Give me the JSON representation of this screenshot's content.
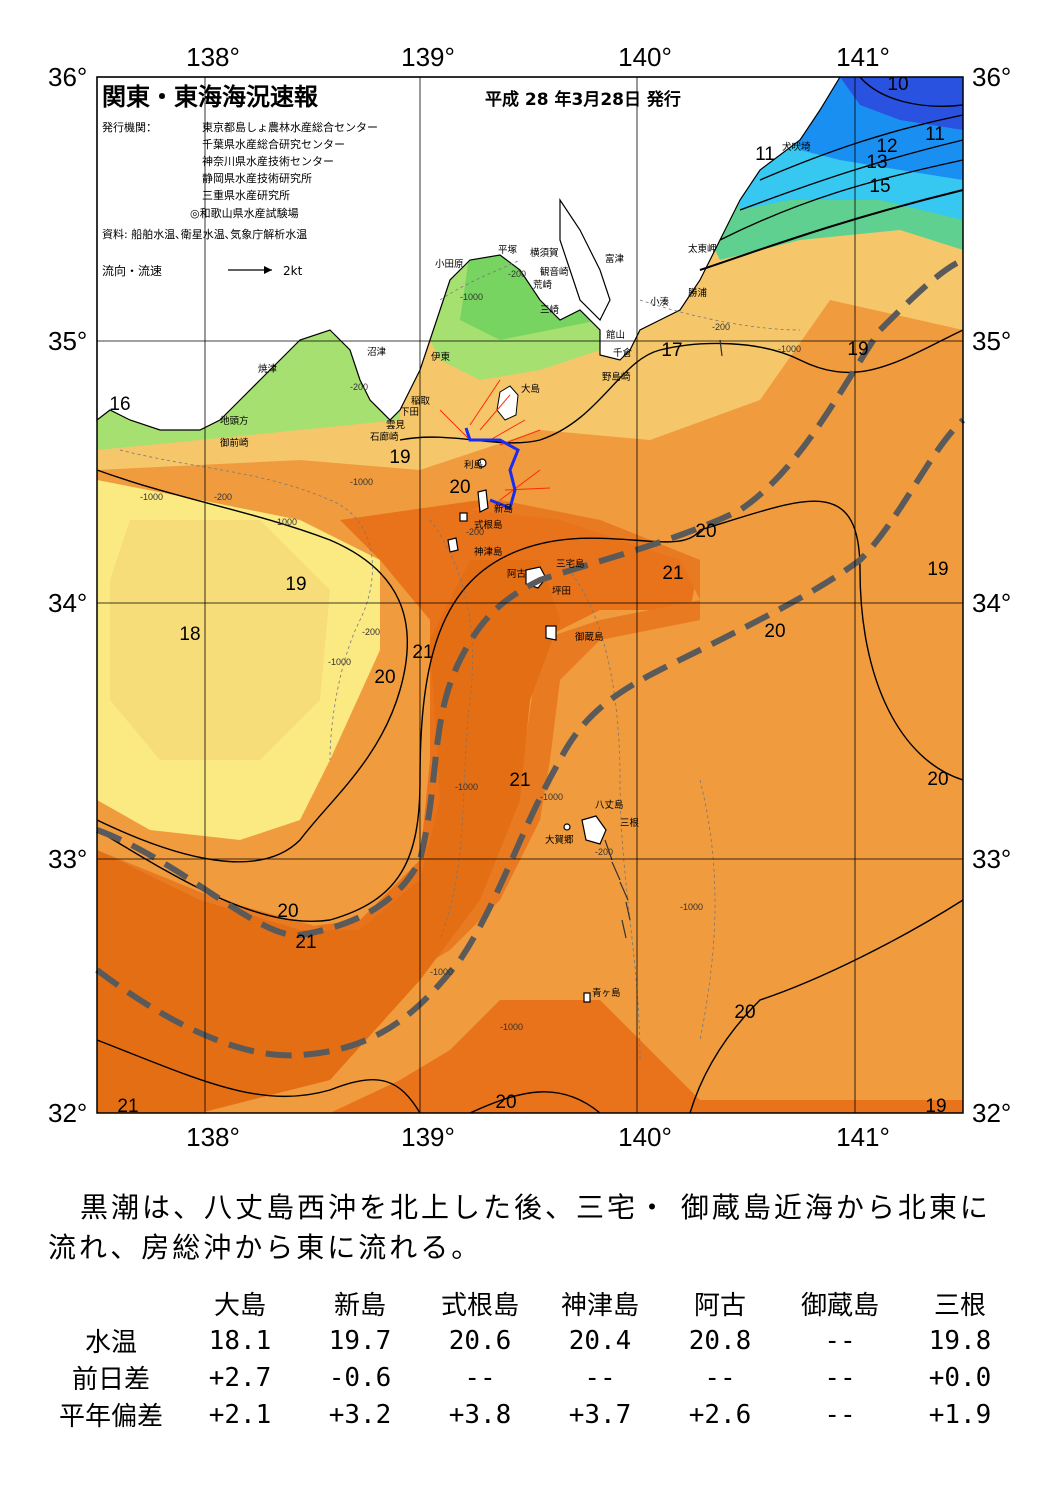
{
  "map": {
    "title": "関東・東海海況速報",
    "issue_date": "平成 28 年3月28日 発行",
    "publisher_label": "発行機関：",
    "publishers": [
      "東京都島しょ農林水産総合センター",
      "千葉県水産総合研究センター",
      "神奈川県水産技術センター",
      "静岡県水産技術研究所",
      "三重県水産研究所",
      "◎和歌山県水産試験場"
    ],
    "source": "資料: 船舶水温､衛星水温､気象庁解析水温",
    "legend_label": "流向・流速",
    "legend_value": "2kt",
    "lon_labels": [
      "138°",
      "139°",
      "140°",
      "141°"
    ],
    "lat_labels": [
      "36°",
      "35°",
      "34°",
      "33°",
      "32°"
    ],
    "isotherm_labels": [
      "10",
      "11",
      "11",
      "12",
      "13",
      "15",
      "16",
      "17",
      "18",
      "19",
      "19",
      "19",
      "19",
      "19",
      "20",
      "20",
      "20",
      "20",
      "20",
      "20",
      "20",
      "20",
      "21",
      "21",
      "21",
      "21",
      "21"
    ],
    "depth_labels": [
      "-200",
      "-1000",
      "-200",
      "-1000",
      "-200",
      "-1000",
      "-1000",
      "-200",
      "-200",
      "-1000",
      "-1000",
      "-1000",
      "-1000",
      "-1000",
      "-200",
      "-1000",
      "-1000",
      "-200"
    ],
    "place_names": [
      "犬吠埼",
      "太東岬",
      "勝浦",
      "小湊",
      "富津",
      "横須賀",
      "観音崎",
      "荒崎",
      "三崎",
      "館山",
      "千倉",
      "野島崎",
      "平塚",
      "小田原",
      "沼津",
      "伊東",
      "焼津",
      "稲取",
      "下田",
      "雲見",
      "石廊崎",
      "地頭方",
      "御前崎",
      "大島",
      "利島",
      "新島",
      "式根島",
      "神津島",
      "三宅島",
      "阿古",
      "坪田",
      "御蔵島",
      "八丈島",
      "三根",
      "大賀郷",
      "青ヶ島"
    ],
    "colors": {
      "kuroshio": "#5a5a5a",
      "current_vectors": "#ff2a0a",
      "ship_track": "#1a2cf0",
      "land": "#ffffff"
    }
  },
  "summary": "黒潮は、八丈島西沖を北上した後、三宅・ 御蔵島近海から北東に流れ、房総沖から東に流れる。",
  "table": {
    "columns": [
      "大島",
      "新島",
      "式根島",
      "神津島",
      "阿古",
      "御蔵島",
      "三根"
    ],
    "rows": [
      {
        "label": "水温",
        "values": [
          "18.1",
          "19.7",
          "20.6",
          "20.4",
          "20.8",
          "--",
          "19.8"
        ]
      },
      {
        "label": "前日差",
        "values": [
          "+2.7",
          "-0.6",
          "--",
          "--",
          "--",
          "--",
          "+0.0"
        ]
      },
      {
        "label": "平年偏差",
        "values": [
          "+2.1",
          "+3.2",
          "+3.8",
          "+3.7",
          "+2.6",
          "--",
          "+1.9"
        ]
      }
    ]
  }
}
